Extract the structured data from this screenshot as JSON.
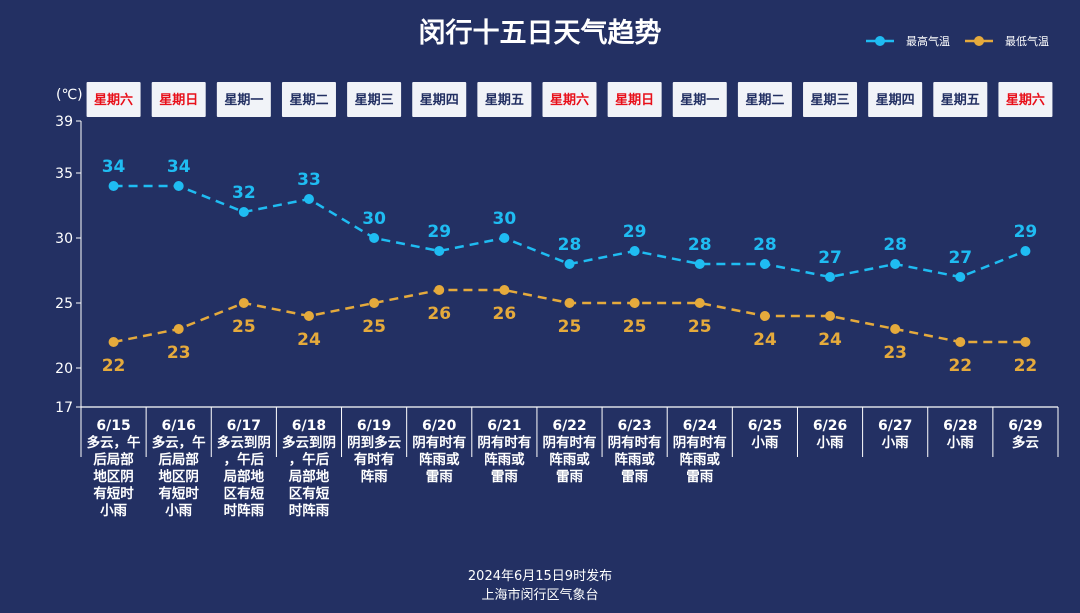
{
  "chart_data": {
    "type": "line",
    "title": "闵行十五日天气趋势",
    "ylabel": "(℃)",
    "ylim": [
      17,
      39
    ],
    "yticks": [
      17,
      20,
      25,
      30,
      35,
      39
    ],
    "categories": [
      "6/15",
      "6/16",
      "6/17",
      "6/18",
      "6/19",
      "6/20",
      "6/21",
      "6/22",
      "6/23",
      "6/24",
      "6/25",
      "6/26",
      "6/27",
      "6/28",
      "6/29"
    ],
    "weekdays": [
      "星期六",
      "星期日",
      "星期一",
      "星期二",
      "星期三",
      "星期四",
      "星期五",
      "星期六",
      "星期日",
      "星期一",
      "星期二",
      "星期三",
      "星期四",
      "星期五",
      "星期六"
    ],
    "weather": [
      [
        "多云，午",
        "后局部",
        "地区阴",
        "有短时",
        "小雨"
      ],
      [
        "多云，午",
        "后局部",
        "地区阴",
        "有短时",
        "小雨"
      ],
      [
        "多云到阴",
        "，午后",
        "局部地",
        "区有短",
        "时阵雨"
      ],
      [
        "多云到阴",
        "，午后",
        "局部地",
        "区有短",
        "时阵雨"
      ],
      [
        "阴到多云",
        "有时有",
        "阵雨"
      ],
      [
        "阴有时有",
        "阵雨或",
        "雷雨"
      ],
      [
        "阴有时有",
        "阵雨或",
        "雷雨"
      ],
      [
        "阴有时有",
        "阵雨或",
        "雷雨"
      ],
      [
        "阴有时有",
        "阵雨或",
        "雷雨"
      ],
      [
        "阴有时有",
        "阵雨或",
        "雷雨"
      ],
      [
        "小雨"
      ],
      [
        "小雨"
      ],
      [
        "小雨"
      ],
      [
        "小雨"
      ],
      [
        "多云"
      ]
    ],
    "series": [
      {
        "name": "最高气温",
        "color": "#1fbcf2",
        "values": [
          34,
          34,
          32,
          33,
          30,
          29,
          30,
          28,
          29,
          28,
          28,
          27,
          28,
          27,
          29
        ]
      },
      {
        "name": "最低气温",
        "color": "#e5aa3c",
        "values": [
          22,
          23,
          25,
          24,
          25,
          26,
          26,
          25,
          25,
          25,
          24,
          24,
          23,
          22,
          22
        ]
      }
    ],
    "weekend_color": "#e8101a",
    "weekday_color": "#233063",
    "grid": false,
    "legend_position": "top-right"
  },
  "footer": {
    "line1": "2024年6月15日9时发布",
    "line2": "上海市闵行区气象台"
  }
}
